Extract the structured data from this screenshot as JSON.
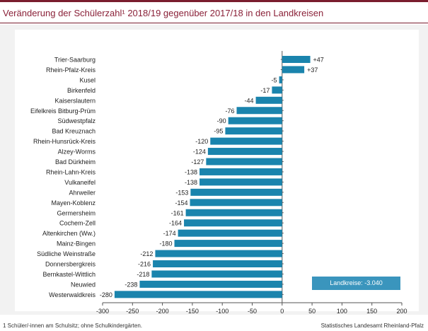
{
  "title": "Veränderung der Schülerzahl¹ 2018/19 gegenüber 2017/18 in den Landkreisen",
  "footnote": "1 Schüler/-innen am Schulsitz; ohne Schulkindergärten.",
  "source": "Statistisches Landesamt Rheinland-Pfalz",
  "total_box": "Landkreise: -3.040",
  "colors": {
    "bar": "#1a84ad",
    "accent": "#7a1d2e",
    "title": "#8a2138"
  },
  "chart_data": {
    "type": "bar",
    "orientation": "horizontal",
    "categories": [
      "Trier-Saarburg",
      "Rhein-Pfalz-Kreis",
      "Kusel",
      "Birkenfeld",
      "Kaiserslautern",
      "Eifelkreis Bitburg-Prüm",
      "Südwestpfalz",
      "Bad Kreuznach",
      "Rhein-Hunsrück-Kreis",
      "Alzey-Worms",
      "Bad Dürkheim",
      "Rhein-Lahn-Kreis",
      "Vulkaneifel",
      "Ahrweiler",
      "Mayen-Koblenz",
      "Germersheim",
      "Cochem-Zell",
      "Altenkirchen (Ww.)",
      "Mainz-Bingen",
      "Südliche Weinstraße",
      "Donnersbergkreis",
      "Bernkastel-Wittlich",
      "Neuwied",
      "Westerwaldkreis"
    ],
    "values": [
      47,
      37,
      -5,
      -17,
      -44,
      -76,
      -90,
      -95,
      -120,
      -124,
      -127,
      -138,
      -138,
      -153,
      -154,
      -161,
      -164,
      -174,
      -180,
      -212,
      -216,
      -218,
      -238,
      -280
    ],
    "labels": [
      "+47",
      "+37",
      "-5",
      "-17",
      "-44",
      "-76",
      "-90",
      "-95",
      "-120",
      "-124",
      "-127",
      "-138",
      "-138",
      "-153",
      "-154",
      "-161",
      "-164",
      "-174",
      "-180",
      "-212",
      "-216",
      "-218",
      "-238",
      "-280"
    ],
    "xlim": [
      -300,
      200
    ],
    "xticks": [
      -300,
      -250,
      -200,
      -150,
      -100,
      -50,
      0,
      50,
      100,
      150,
      200
    ],
    "xtick_labels": [
      "-300",
      "-250",
      "-200",
      "-150",
      "-100",
      "-50",
      "0",
      "50",
      "100",
      "150",
      "200"
    ],
    "grid": false
  }
}
